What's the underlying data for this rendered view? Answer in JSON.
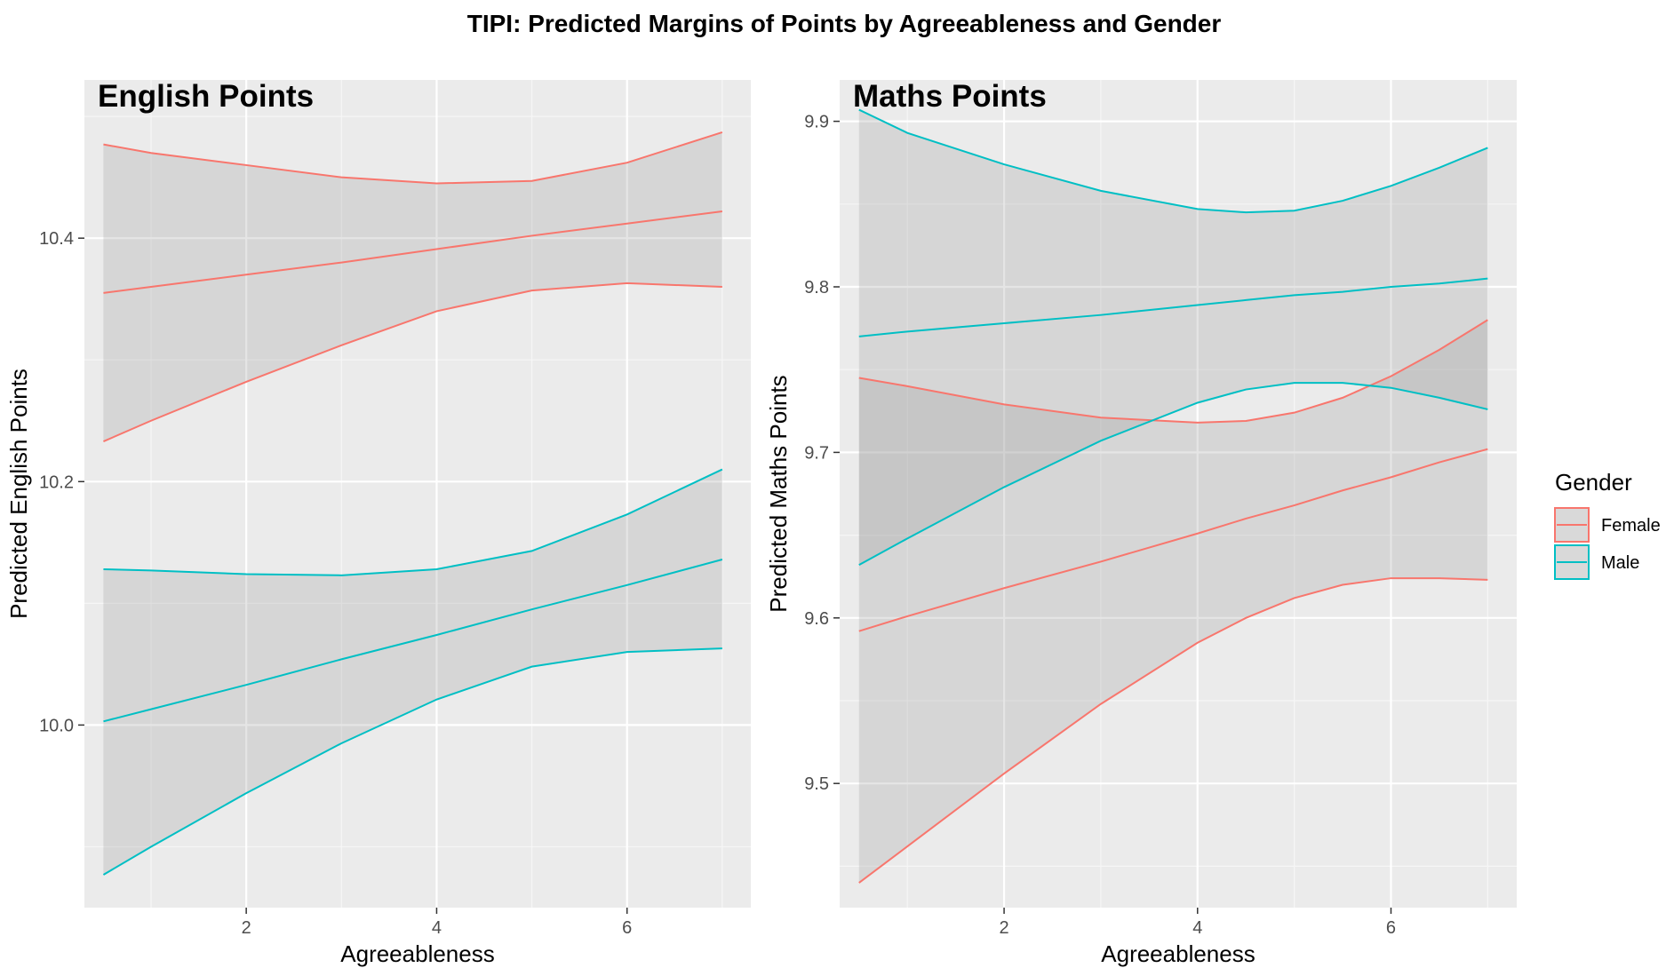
{
  "title": "TIPI: Predicted Margins of Points by Agreeableness and Gender",
  "legend": {
    "title": "Gender",
    "items": [
      {
        "label": "Female",
        "color": "#F8766D"
      },
      {
        "label": "Male",
        "color": "#00BFC4"
      }
    ]
  },
  "chart_data": [
    {
      "type": "line",
      "panel_label": "English Points",
      "xlabel": "Agreeableness",
      "ylabel": "Predicted English Points",
      "xlim": [
        0.3,
        7.3
      ],
      "ylim": [
        9.85,
        10.53
      ],
      "x_ticks": [
        2,
        4,
        6
      ],
      "y_ticks": [
        10.0,
        10.2,
        10.4
      ],
      "y_tick_labels": [
        "10.0",
        "10.2",
        "10.4"
      ],
      "grid": true,
      "series": [
        {
          "name": "Female",
          "color": "#F8766D",
          "x": [
            0.5,
            1,
            2,
            3,
            4,
            5,
            6,
            7
          ],
          "fit": [
            10.355,
            10.36,
            10.37,
            10.38,
            10.391,
            10.402,
            10.412,
            10.422
          ],
          "upper": [
            10.477,
            10.47,
            10.46,
            10.45,
            10.445,
            10.447,
            10.462,
            10.487
          ],
          "lower": [
            10.233,
            10.25,
            10.282,
            10.312,
            10.34,
            10.357,
            10.363,
            10.36
          ]
        },
        {
          "name": "Male",
          "color": "#00BFC4",
          "x": [
            0.5,
            1,
            2,
            3,
            4,
            5,
            6,
            7
          ],
          "fit": [
            10.003,
            10.013,
            10.033,
            10.054,
            10.074,
            10.095,
            10.115,
            10.136
          ],
          "upper": [
            10.128,
            10.127,
            10.124,
            10.123,
            10.128,
            10.143,
            10.173,
            10.21
          ],
          "lower": [
            9.877,
            9.9,
            9.944,
            9.985,
            10.021,
            10.048,
            10.06,
            10.063
          ]
        }
      ]
    },
    {
      "type": "line",
      "panel_label": "Maths Points",
      "xlabel": "Agreeableness",
      "ylabel": "Predicted Maths Points",
      "xlim": [
        0.3,
        7.3
      ],
      "ylim": [
        9.425,
        9.925
      ],
      "x_ticks": [
        2,
        4,
        6
      ],
      "y_ticks": [
        9.5,
        9.6,
        9.7,
        9.8,
        9.9
      ],
      "y_tick_labels": [
        "9.5",
        "9.6",
        "9.7",
        "9.8",
        "9.9"
      ],
      "grid": true,
      "series": [
        {
          "name": "Female",
          "color": "#F8766D",
          "x": [
            0.5,
            1,
            2,
            3,
            4,
            4.5,
            5,
            5.5,
            6,
            6.5,
            7
          ],
          "fit": [
            9.592,
            9.601,
            9.618,
            9.634,
            9.651,
            9.66,
            9.668,
            9.677,
            9.685,
            9.694,
            9.702
          ],
          "upper": [
            9.745,
            9.74,
            9.729,
            9.721,
            9.718,
            9.719,
            9.724,
            9.733,
            9.746,
            9.762,
            9.78
          ],
          "lower": [
            9.44,
            9.462,
            9.506,
            9.548,
            9.585,
            9.6,
            9.612,
            9.62,
            9.624,
            9.624,
            9.623
          ]
        },
        {
          "name": "Male",
          "color": "#00BFC4",
          "x": [
            0.5,
            1,
            2,
            3,
            4,
            4.5,
            5,
            5.5,
            6,
            6.5,
            7
          ],
          "fit": [
            9.77,
            9.773,
            9.778,
            9.783,
            9.789,
            9.792,
            9.795,
            9.797,
            9.8,
            9.802,
            9.805
          ],
          "upper": [
            9.907,
            9.893,
            9.874,
            9.858,
            9.847,
            9.845,
            9.846,
            9.852,
            9.861,
            9.872,
            9.884
          ],
          "lower": [
            9.632,
            9.648,
            9.679,
            9.707,
            9.73,
            9.738,
            9.742,
            9.742,
            9.739,
            9.733,
            9.726
          ]
        }
      ]
    }
  ]
}
